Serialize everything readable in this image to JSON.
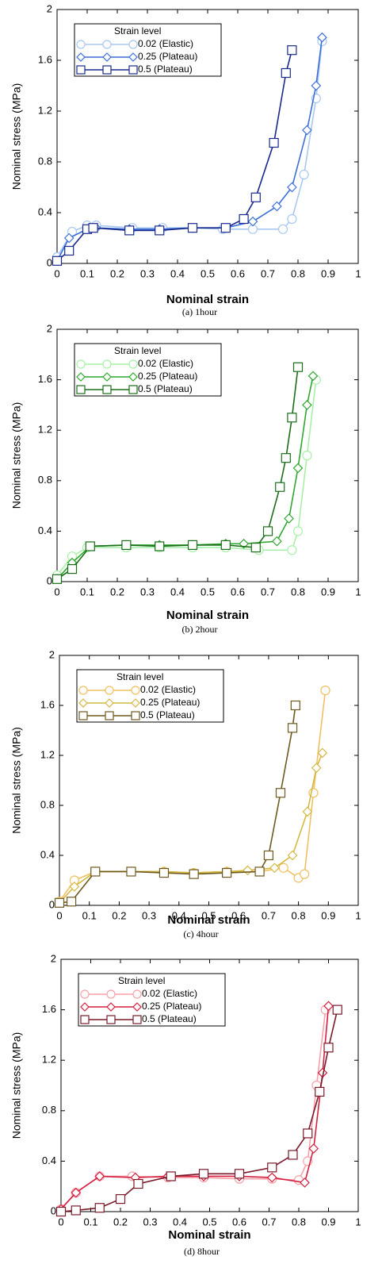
{
  "chart_data": [
    {
      "type": "line",
      "caption": "(a)  1hour",
      "xlabel": "Nominal strain",
      "ylabel": "Nominal stress (MPa)",
      "legend_title": "Strain level",
      "xlim": [
        0,
        1
      ],
      "xticks": [
        0,
        0.1,
        0.2,
        0.3,
        0.4,
        0.5,
        0.6,
        0.7,
        0.8,
        0.9,
        1
      ],
      "ylim": [
        0,
        2
      ],
      "yticks": [
        0,
        0.4,
        0.8,
        1.2,
        1.6,
        2
      ],
      "series": [
        {
          "name": "0.02 (Elastic)",
          "color": "#a8c8f0",
          "marker": "circle",
          "x": [
            0,
            0.05,
            0.1,
            0.13,
            0.25,
            0.35,
            0.45,
            0.55,
            0.65,
            0.75,
            0.78,
            0.82,
            0.86,
            0.88
          ],
          "values": [
            0.05,
            0.25,
            0.3,
            0.3,
            0.28,
            0.28,
            0.28,
            0.27,
            0.27,
            0.27,
            0.35,
            0.7,
            1.3,
            1.75
          ]
        },
        {
          "name": "0.25 (Plateau)",
          "color": "#3a6fd8",
          "marker": "diamond",
          "x": [
            0,
            0.04,
            0.1,
            0.13,
            0.24,
            0.34,
            0.45,
            0.56,
            0.65,
            0.73,
            0.78,
            0.83,
            0.86,
            0.88
          ],
          "values": [
            0.02,
            0.2,
            0.27,
            0.28,
            0.27,
            0.27,
            0.28,
            0.28,
            0.33,
            0.45,
            0.6,
            1.05,
            1.4,
            1.78
          ]
        },
        {
          "name": "0.5 (Plateau)",
          "color": "#1a2a8c",
          "marker": "square",
          "x": [
            0,
            0.04,
            0.1,
            0.12,
            0.24,
            0.34,
            0.45,
            0.56,
            0.62,
            0.66,
            0.72,
            0.76,
            0.78
          ],
          "values": [
            0.02,
            0.1,
            0.27,
            0.28,
            0.26,
            0.26,
            0.28,
            0.28,
            0.35,
            0.52,
            0.95,
            1.5,
            1.68
          ]
        }
      ]
    },
    {
      "type": "line",
      "caption": "(b)  2hour",
      "xlabel": "Nominal strain",
      "ylabel": "Nominal stress (MPa)",
      "legend_title": "Strain level",
      "xlim": [
        0,
        1
      ],
      "xticks": [
        0,
        0.1,
        0.2,
        0.3,
        0.4,
        0.5,
        0.6,
        0.7,
        0.8,
        0.9,
        1
      ],
      "ylim": [
        0,
        2
      ],
      "yticks": [
        0,
        0.4,
        0.8,
        1.2,
        1.6,
        2
      ],
      "series": [
        {
          "name": "0.02 (Elastic)",
          "color": "#a8f0a8",
          "marker": "circle",
          "x": [
            0,
            0.05,
            0.1,
            0.23,
            0.34,
            0.45,
            0.56,
            0.67,
            0.78,
            0.8,
            0.83,
            0.86
          ],
          "values": [
            0.05,
            0.2,
            0.27,
            0.27,
            0.27,
            0.27,
            0.27,
            0.25,
            0.25,
            0.4,
            1.0,
            1.6
          ]
        },
        {
          "name": "0.25 (Plateau)",
          "color": "#2ea82e",
          "marker": "diamond",
          "x": [
            0,
            0.05,
            0.11,
            0.23,
            0.34,
            0.45,
            0.56,
            0.62,
            0.73,
            0.77,
            0.8,
            0.83,
            0.85
          ],
          "values": [
            0.02,
            0.15,
            0.28,
            0.29,
            0.29,
            0.29,
            0.3,
            0.3,
            0.32,
            0.5,
            0.9,
            1.4,
            1.63
          ]
        },
        {
          "name": "0.5 (Plateau)",
          "color": "#1a6e1a",
          "marker": "square",
          "x": [
            0,
            0.05,
            0.11,
            0.23,
            0.34,
            0.45,
            0.56,
            0.66,
            0.7,
            0.74,
            0.76,
            0.78,
            0.8
          ],
          "values": [
            0.02,
            0.1,
            0.28,
            0.29,
            0.28,
            0.29,
            0.29,
            0.27,
            0.4,
            0.75,
            0.98,
            1.3,
            1.7
          ]
        }
      ]
    },
    {
      "type": "line",
      "caption": "(c)  4hour",
      "xlabel": "Nominal strain",
      "ylabel": "Nominal stress (MPa)",
      "legend_title": "Strain level",
      "xlim": [
        0,
        1
      ],
      "xticks": [
        0,
        0.1,
        0.2,
        0.3,
        0.4,
        0.5,
        0.6,
        0.7,
        0.8,
        0.9,
        1
      ],
      "ylim": [
        0,
        2
      ],
      "yticks": [
        0,
        0.4,
        0.8,
        1.2,
        1.6,
        2
      ],
      "series": [
        {
          "name": "0.02 (Elastic)",
          "color": "#f0c060",
          "marker": "circle",
          "x": [
            0,
            0.05,
            0.12,
            0.24,
            0.35,
            0.45,
            0.56,
            0.67,
            0.75,
            0.8,
            0.82,
            0.85,
            0.89
          ],
          "values": [
            0.03,
            0.2,
            0.27,
            0.27,
            0.27,
            0.26,
            0.27,
            0.27,
            0.3,
            0.22,
            0.25,
            0.9,
            1.72
          ]
        },
        {
          "name": "0.25 (Plateau)",
          "color": "#d4b840",
          "marker": "diamond",
          "x": [
            0,
            0.05,
            0.12,
            0.24,
            0.35,
            0.45,
            0.56,
            0.63,
            0.72,
            0.78,
            0.83,
            0.86,
            0.88
          ],
          "values": [
            0.02,
            0.15,
            0.27,
            0.27,
            0.27,
            0.26,
            0.27,
            0.28,
            0.3,
            0.4,
            0.75,
            1.1,
            1.22
          ]
        },
        {
          "name": "0.5 (Plateau)",
          "color": "#6e5a1e",
          "marker": "square",
          "x": [
            0,
            0.04,
            0.12,
            0.24,
            0.35,
            0.45,
            0.56,
            0.67,
            0.7,
            0.74,
            0.78,
            0.79
          ],
          "values": [
            0.02,
            0.03,
            0.27,
            0.27,
            0.26,
            0.25,
            0.26,
            0.27,
            0.4,
            0.9,
            1.42,
            1.6
          ]
        }
      ]
    },
    {
      "type": "line",
      "caption": "(d)  8hour",
      "xlabel": "Nominal strain",
      "ylabel": "Nominal stress (MPa)",
      "legend_title": "Strain level",
      "xlim": [
        0,
        1
      ],
      "xticks": [
        0,
        0.1,
        0.2,
        0.3,
        0.4,
        0.5,
        0.6,
        0.7,
        0.8,
        0.9,
        1
      ],
      "ylim": [
        0,
        2
      ],
      "yticks": [
        0,
        0.4,
        0.8,
        1.2,
        1.6,
        2
      ],
      "series": [
        {
          "name": "0.02 (Elastic)",
          "color": "#f8a0a8",
          "marker": "circle",
          "x": [
            0,
            0.05,
            0.13,
            0.24,
            0.36,
            0.48,
            0.6,
            0.71,
            0.8,
            0.83,
            0.86,
            0.89
          ],
          "values": [
            0.02,
            0.15,
            0.28,
            0.28,
            0.27,
            0.27,
            0.26,
            0.26,
            0.25,
            0.4,
            1.0,
            1.6
          ]
        },
        {
          "name": "0.25 (Plateau)",
          "color": "#d42040",
          "marker": "diamond",
          "x": [
            0,
            0.05,
            0.13,
            0.25,
            0.36,
            0.48,
            0.6,
            0.71,
            0.82,
            0.85,
            0.88,
            0.9
          ],
          "values": [
            0.02,
            0.15,
            0.28,
            0.27,
            0.28,
            0.28,
            0.28,
            0.27,
            0.23,
            0.5,
            1.1,
            1.63
          ]
        },
        {
          "name": "0.5 (Plateau)",
          "color": "#7a1a2a",
          "marker": "square",
          "x": [
            0,
            0.05,
            0.13,
            0.2,
            0.26,
            0.37,
            0.48,
            0.6,
            0.71,
            0.78,
            0.83,
            0.87,
            0.9,
            0.93
          ],
          "values": [
            0,
            0.01,
            0.03,
            0.1,
            0.22,
            0.28,
            0.3,
            0.3,
            0.35,
            0.45,
            0.62,
            0.95,
            1.3,
            1.6
          ]
        }
      ]
    }
  ]
}
